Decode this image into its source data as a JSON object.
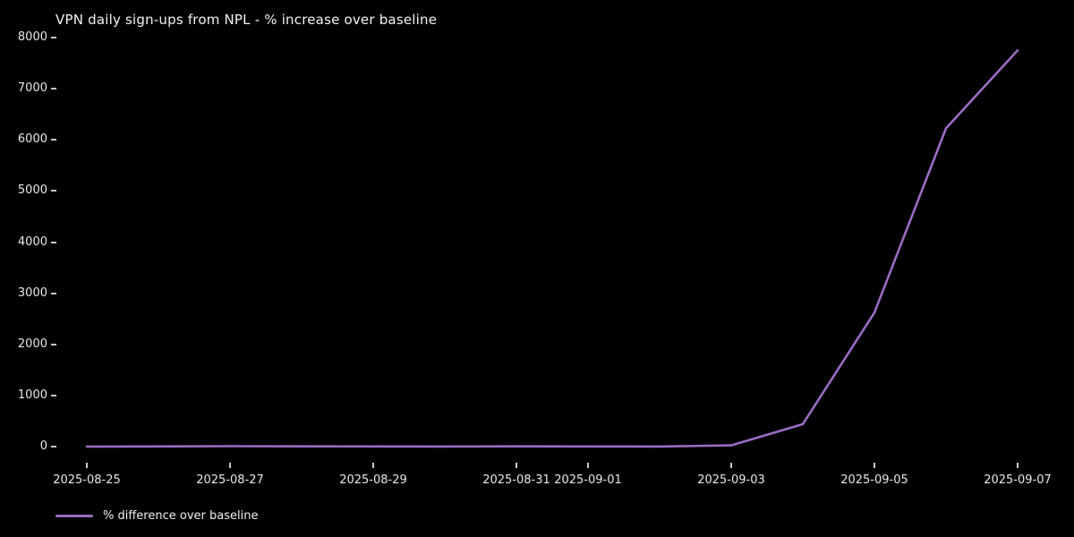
{
  "figure": {
    "background": "#000000",
    "text_color": "#e8e8e8"
  },
  "chart_data": {
    "type": "line",
    "title": "VPN daily sign-ups from NPL - % increase over baseline",
    "xlabel": "",
    "ylabel": "",
    "x": [
      "2025-08-25",
      "2025-08-26",
      "2025-08-27",
      "2025-08-28",
      "2025-08-29",
      "2025-08-30",
      "2025-08-31",
      "2025-09-01",
      "2025-09-02",
      "2025-09-03",
      "2025-09-04",
      "2025-09-05",
      "2025-09-06",
      "2025-09-07"
    ],
    "series": [
      {
        "name": "% difference over baseline",
        "color": "#9a6cc3",
        "values": [
          0,
          3,
          8,
          6,
          4,
          2,
          5,
          3,
          1,
          25,
          440,
          2620,
          6225,
          7750
        ]
      }
    ],
    "xtick_labels": [
      "2025-08-25",
      "2025-08-27",
      "2025-08-29",
      "2025-08-31",
      "2025-09-01",
      "2025-09-03",
      "2025-09-05",
      "2025-09-07"
    ],
    "ytick_labels": [
      "0",
      "1000",
      "2000",
      "3000",
      "4000",
      "5000",
      "6000",
      "7000",
      "8000"
    ],
    "ylim": [
      0,
      8000
    ],
    "grid": false,
    "legend_position": "bottom-left"
  },
  "legend": {
    "label": "% difference over baseline"
  }
}
